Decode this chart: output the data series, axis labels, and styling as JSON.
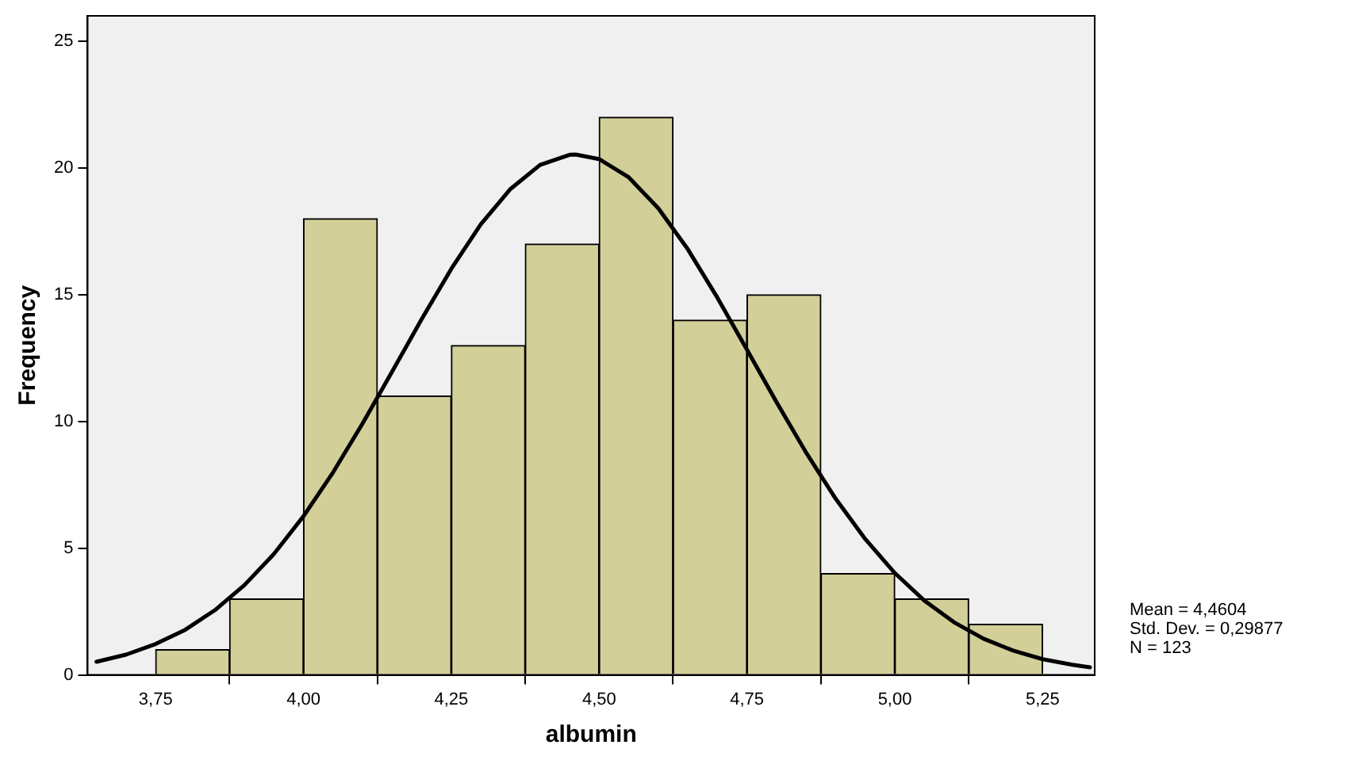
{
  "chart_data": {
    "type": "histogram",
    "xlabel": "albumin",
    "ylabel": "Frequency",
    "bins": [
      3.75,
      3.875,
      4.0,
      4.125,
      4.25,
      4.375,
      4.5,
      4.625,
      4.75,
      4.875,
      5.0,
      5.125,
      5.25
    ],
    "values": [
      1,
      3,
      18,
      11,
      13,
      17,
      22,
      14,
      15,
      4,
      3,
      2
    ],
    "color": "#d3cf99",
    "series": [
      {
        "type": "line",
        "color": "#000000",
        "x": [
          3.65,
          3.7,
          3.75,
          3.8,
          3.85,
          3.9,
          3.95,
          4.0,
          4.05,
          4.1,
          4.15,
          4.2,
          4.25,
          4.3,
          4.35,
          4.4,
          4.45,
          4.4604,
          4.5,
          4.55,
          4.6,
          4.65,
          4.7,
          4.75,
          4.8,
          4.85,
          4.9,
          4.95,
          5.0,
          5.05,
          5.1,
          5.15,
          5.2,
          5.25,
          5.3,
          5.33
        ],
        "values": [
          0.52,
          0.8,
          1.22,
          1.78,
          2.55,
          3.54,
          4.77,
          6.26,
          7.99,
          9.92,
          11.97,
          14.04,
          16.02,
          17.78,
          19.17,
          20.12,
          20.52,
          20.53,
          20.35,
          19.63,
          18.41,
          16.79,
          14.88,
          12.83,
          10.76,
          8.77,
          6.95,
          5.36,
          4.02,
          2.93,
          2.08,
          1.43,
          0.96,
          0.62,
          0.4,
          0.3
        ]
      }
    ],
    "xlim": [
      3.635,
      5.338
    ],
    "xticks": [
      {
        "value": 3.75,
        "label": "3,75"
      },
      {
        "value": 4.0,
        "label": "4,00"
      },
      {
        "value": 4.25,
        "label": "4,25"
      },
      {
        "value": 4.5,
        "label": "4,50"
      },
      {
        "value": 4.75,
        "label": "4,75"
      },
      {
        "value": 5.0,
        "label": "5,00"
      },
      {
        "value": 5.25,
        "label": "5,25"
      }
    ],
    "ylim": [
      0,
      26
    ],
    "yticks": [
      0,
      5,
      10,
      15,
      20,
      25
    ],
    "marker": "none",
    "annotations": [
      "Mean = 4,4604",
      "Std. Dev. = 0,29877",
      "N = 123"
    ]
  }
}
